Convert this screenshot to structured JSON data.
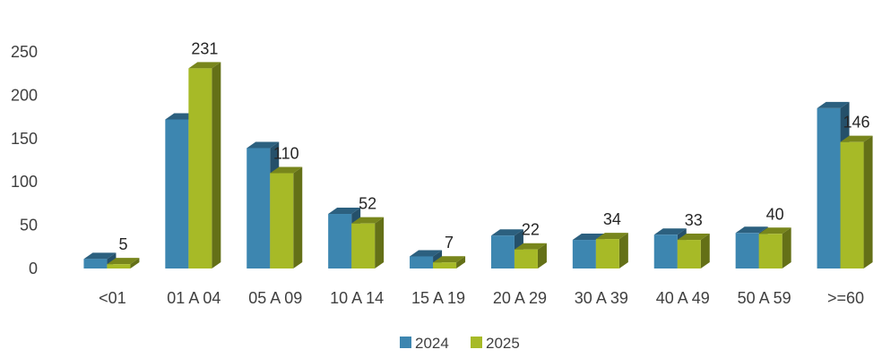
{
  "chart_data": {
    "type": "bar",
    "style": "3d-clustered-column",
    "title": "",
    "xlabel": "",
    "ylabel": "",
    "ylim": [
      0,
      250
    ],
    "yticks": [
      0,
      50,
      100,
      150,
      200,
      250
    ],
    "grid": false,
    "legend_position": "bottom",
    "categories": [
      "<01",
      "01 A 04",
      "05 A 09",
      "10 A 14",
      "15 A 19",
      "20 A 29",
      "30 A 39",
      "40 A 49",
      "50 A 59",
      ">=60"
    ],
    "series": [
      {
        "name": "2024",
        "color": "#3d86b0",
        "values": [
          11,
          172,
          139,
          63,
          14,
          38,
          33,
          39,
          41,
          185
        ]
      },
      {
        "name": "2025",
        "color": "#a7ba27",
        "values": [
          5,
          231,
          110,
          52,
          7,
          22,
          34,
          33,
          40,
          146
        ]
      }
    ],
    "data_labels": {
      "series": "2025",
      "values": [
        "5",
        "231",
        "110",
        "52",
        "7",
        "22",
        "34",
        "33",
        "40",
        "146"
      ]
    }
  }
}
